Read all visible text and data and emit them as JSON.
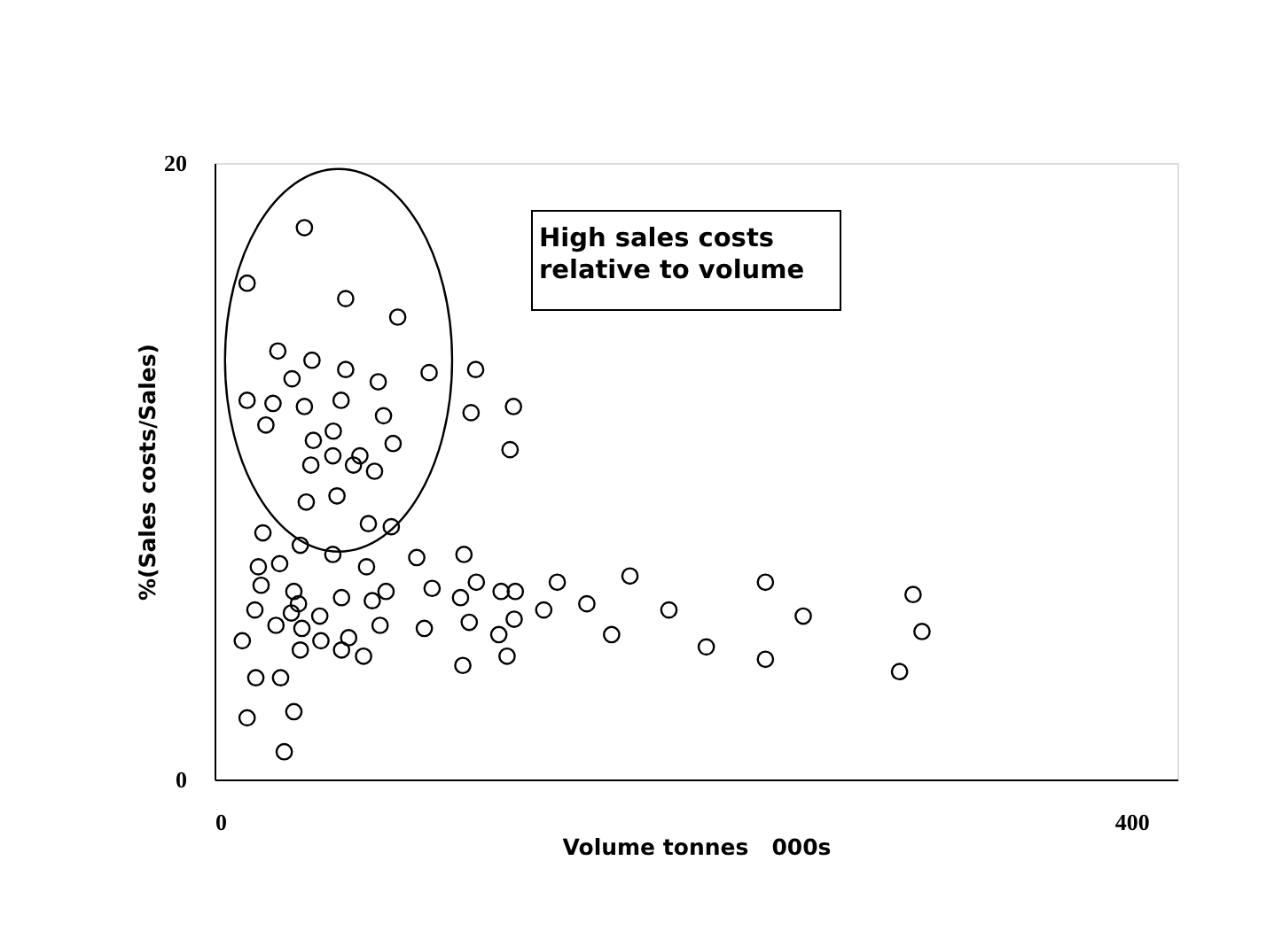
{
  "chart_data": {
    "type": "scatter",
    "xlabel": "Volume tonnes   000s",
    "ylabel": "%(Sales costs/Sales)",
    "annotations": [
      "High sales costs\nrelative to volume"
    ],
    "x": [
      39.2,
      14.2,
      57.2,
      79.9,
      27.6,
      42.5,
      57.2,
      93.6,
      113.9,
      33.8,
      71.4,
      14.2,
      25.5,
      39.2,
      55.2,
      111.9,
      130.4,
      22.4,
      73.7,
      51.8,
      43.1,
      77.9,
      128.9,
      42.0,
      51.6,
      60.6,
      63.4,
      69.8,
      40.0,
      53.4,
      67.1,
      77.1,
      21.1,
      37.4,
      51.6,
      88.2,
      108.8,
      19.1,
      28.4,
      66.3,
      20.3,
      34.6,
      55.4,
      68.8,
      74.8,
      94.9,
      114.2,
      107.3,
      125.0,
      131.2,
      149.5,
      17.6,
      36.6,
      33.5,
      45.9,
      26.8,
      38.1,
      72.2,
      91.5,
      111.1,
      130.7,
      143.6,
      124.0,
      12.1,
      46.4,
      58.5,
      37.4,
      55.4,
      65.0,
      127.6,
      108.3,
      18.0,
      28.8,
      14.2,
      34.6,
      30.4,
      162.4,
      181.2,
      173.2,
      198.2,
      214.5,
      240.3,
      256.8,
      240.3,
      304.7,
      308.6,
      298.8
    ],
    "values": [
      17.9,
      16.1,
      15.6,
      15.0,
      13.9,
      13.6,
      13.3,
      13.2,
      13.3,
      13.0,
      12.9,
      12.3,
      12.2,
      12.1,
      12.3,
      11.9,
      12.1,
      11.5,
      11.8,
      11.3,
      11.0,
      10.9,
      10.7,
      10.2,
      10.5,
      10.2,
      10.5,
      10.0,
      9.0,
      9.2,
      8.3,
      8.2,
      8.0,
      7.6,
      7.3,
      7.2,
      7.3,
      6.9,
      7.0,
      6.9,
      6.3,
      6.1,
      5.9,
      5.8,
      6.1,
      6.2,
      6.4,
      5.9,
      6.1,
      6.1,
      6.4,
      5.5,
      5.7,
      5.4,
      5.3,
      5.0,
      4.9,
      5.0,
      4.9,
      5.1,
      5.2,
      5.5,
      4.7,
      4.5,
      4.5,
      4.6,
      4.2,
      4.2,
      4.0,
      4.0,
      3.7,
      3.3,
      3.3,
      2.0,
      2.2,
      0.9,
      5.7,
      6.6,
      4.7,
      5.5,
      4.3,
      6.4,
      5.3,
      3.9,
      6.0,
      4.8,
      3.5
    ],
    "color": "#000000",
    "marker": "circle",
    "grid": false,
    "xlim": [
      0,
      420
    ],
    "xticks": [
      0,
      400
    ],
    "ylim": [
      0,
      20
    ],
    "yticks": [
      0,
      20
    ]
  }
}
